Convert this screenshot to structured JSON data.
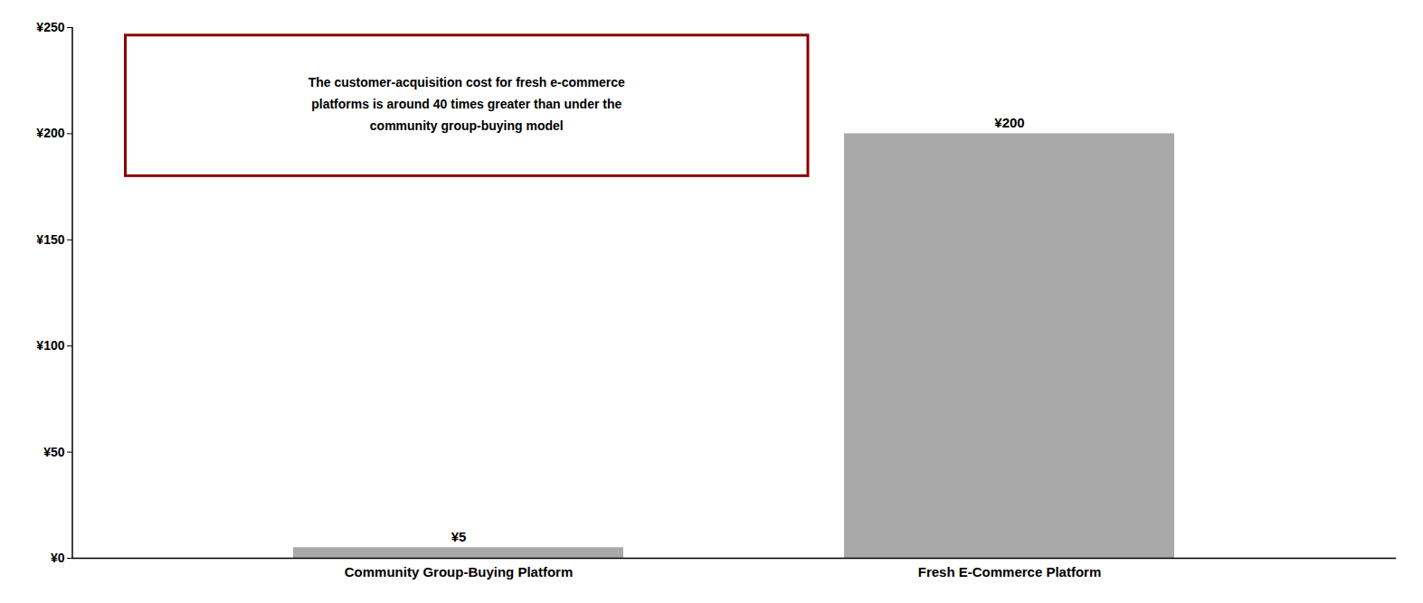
{
  "chart_data": {
    "type": "bar",
    "categories": [
      "Community Group-Buying Platform",
      "Fresh E-Commerce Platform"
    ],
    "values": [
      5,
      200
    ],
    "value_labels": [
      "¥5",
      "¥200"
    ],
    "data_labels": true,
    "color": "#A9A9A9",
    "ylim": [
      0,
      250
    ],
    "yticks": [
      {
        "value": 0,
        "label": "¥0"
      },
      {
        "value": 50,
        "label": "¥50"
      },
      {
        "value": 100,
        "label": "¥100"
      },
      {
        "value": 150,
        "label": "¥150"
      },
      {
        "value": 200,
        "label": "¥200"
      },
      {
        "value": 250,
        "label": "¥250"
      }
    ],
    "grid": false,
    "annotations": [
      {
        "text": [
          "The customer-acquisition cost for fresh e-commerce",
          "platforms is around 40 times greater than under the",
          "community group-buying model"
        ],
        "color": "#8B0000"
      }
    ]
  }
}
